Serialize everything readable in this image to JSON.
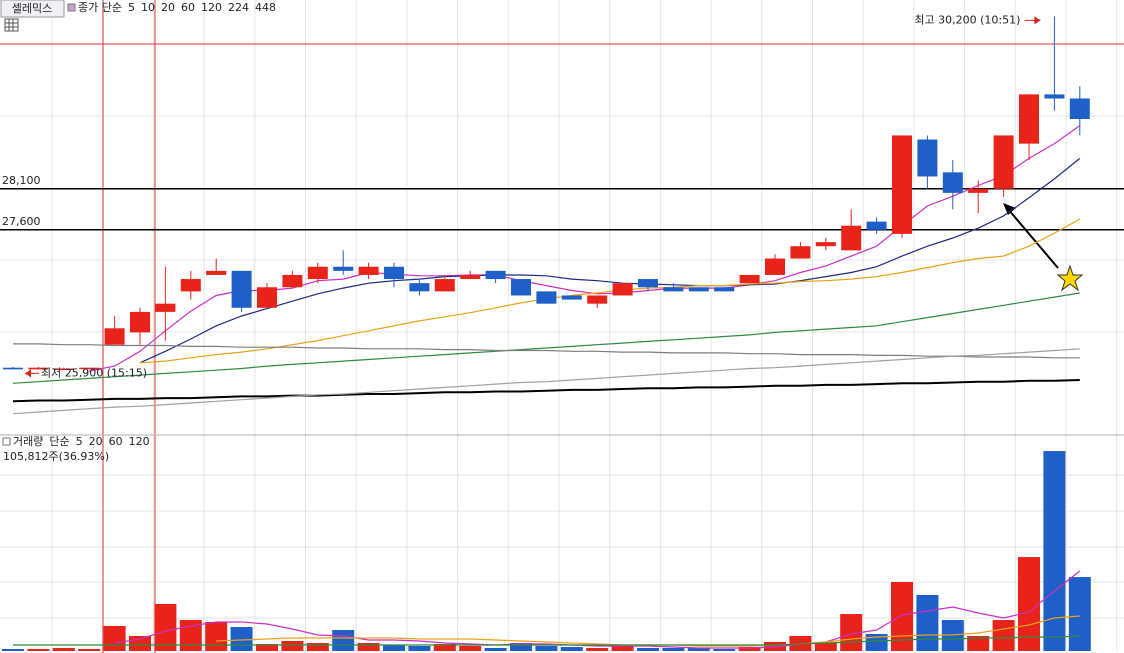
{
  "chart_data": [
    {
      "type": "candlestick",
      "title": "셀레믹스",
      "legend_title": "종가 단순",
      "up_color": "#e8231a",
      "down_color": "#1f5fc8",
      "open": [
        25920,
        25900,
        25910,
        25910,
        26200,
        26350,
        26600,
        26850,
        27050,
        27100,
        26650,
        26900,
        27000,
        27150,
        27050,
        27150,
        26950,
        26850,
        27000,
        27100,
        27000,
        26850,
        26800,
        26700,
        26800,
        27000,
        26900,
        26900,
        26900,
        26950,
        27050,
        27250,
        27400,
        27350,
        27700,
        27550,
        28700,
        28300,
        28050,
        28100,
        28650,
        29250,
        29200
      ],
      "high": [
        25930,
        25930,
        25920,
        25920,
        26550,
        26650,
        27150,
        27100,
        27250,
        27100,
        26950,
        27100,
        27200,
        27350,
        27200,
        27200,
        27000,
        27050,
        27100,
        27100,
        27000,
        26850,
        26800,
        26800,
        26950,
        27000,
        26950,
        26900,
        26900,
        27050,
        27300,
        27450,
        27500,
        27850,
        27750,
        28750,
        28750,
        28450,
        28200,
        28750,
        29250,
        30200,
        29350
      ],
      "low": [
        25900,
        25900,
        25900,
        25900,
        26200,
        26200,
        26250,
        26750,
        27050,
        26600,
        26650,
        26900,
        26950,
        27050,
        27000,
        26900,
        26800,
        26850,
        27000,
        26950,
        26800,
        26700,
        26750,
        26650,
        26800,
        26850,
        26850,
        26850,
        26850,
        26950,
        27050,
        27250,
        27350,
        27350,
        27550,
        27500,
        28100,
        27850,
        27800,
        28000,
        28450,
        29050,
        28750
      ],
      "close": [
        25900,
        25920,
        25910,
        25920,
        26400,
        26600,
        26700,
        27000,
        27100,
        26650,
        26900,
        27050,
        27150,
        27100,
        27150,
        27000,
        26850,
        27000,
        27050,
        27000,
        26800,
        26700,
        26750,
        26800,
        26950,
        26900,
        26850,
        26850,
        26850,
        27050,
        27250,
        27400,
        27450,
        27650,
        27600,
        28750,
        28250,
        28050,
        28100,
        28750,
        29250,
        29200,
        28950
      ],
      "series": [
        {
          "name": "5",
          "color": "#cc2fc4",
          "values": [
            null,
            null,
            null,
            25880,
            25940,
            26120,
            26370,
            26610,
            26800,
            26860,
            26860,
            26890,
            26980,
            27000,
            27080,
            27060,
            27040,
            27040,
            27050,
            27050,
            26980,
            26920,
            26860,
            26820,
            26830,
            26860,
            26890,
            26890,
            26890,
            26930,
            26980,
            27080,
            27160,
            27280,
            27400,
            27650,
            27890,
            28010,
            28140,
            28260,
            28470,
            28650,
            28870
          ]
        },
        {
          "name": "10",
          "color": "#1a2a80",
          "values": [
            null,
            null,
            null,
            null,
            null,
            25980,
            26120,
            26270,
            26430,
            26550,
            26640,
            26730,
            26820,
            26890,
            26950,
            26980,
            27000,
            27030,
            27040,
            27050,
            27050,
            27040,
            27000,
            26980,
            26950,
            26940,
            26930,
            26920,
            26920,
            26930,
            26940,
            26980,
            27030,
            27080,
            27150,
            27280,
            27400,
            27500,
            27620,
            27770,
            27990,
            28220,
            28470
          ]
        },
        {
          "name": "20",
          "color": "#e8a317",
          "values": [
            null,
            null,
            null,
            null,
            null,
            25980,
            26000,
            26040,
            26080,
            26110,
            26150,
            26200,
            26250,
            26310,
            26370,
            26430,
            26490,
            26540,
            26590,
            26650,
            26710,
            26760,
            26800,
            26830,
            26870,
            26890,
            26900,
            26920,
            26920,
            26940,
            26950,
            26970,
            26980,
            27000,
            27030,
            27080,
            27140,
            27200,
            27250,
            27280,
            27400,
            27560,
            27730
          ]
        },
        {
          "name": "60",
          "color": "#2e8b3e",
          "values": [
            25730,
            25750,
            25770,
            25790,
            25810,
            25830,
            25850,
            25870,
            25890,
            25910,
            25940,
            25960,
            25980,
            26000,
            26020,
            26040,
            26060,
            26080,
            26100,
            26120,
            26140,
            26160,
            26180,
            26200,
            26220,
            26240,
            26260,
            26280,
            26300,
            26320,
            26350,
            26370,
            26390,
            26410,
            26430,
            26480,
            26530,
            26580,
            26630,
            26680,
            26730,
            26780,
            26830
          ]
        },
        {
          "name": "120",
          "color": "#7f7f7f",
          "values": [
            26210,
            26210,
            26200,
            26200,
            26190,
            26190,
            26190,
            26180,
            26180,
            26170,
            26170,
            26170,
            26160,
            26160,
            26150,
            26150,
            26150,
            26140,
            26140,
            26130,
            26130,
            26130,
            26120,
            26120,
            26110,
            26110,
            26100,
            26100,
            26100,
            26090,
            26090,
            26080,
            26080,
            26080,
            26070,
            26070,
            26060,
            26060,
            26050,
            26050,
            26050,
            26040,
            26040
          ]
        },
        {
          "name": "224",
          "color": "#000000",
          "values": [
            25510,
            25520,
            25520,
            25530,
            25540,
            25540,
            25550,
            25550,
            25560,
            25570,
            25570,
            25580,
            25580,
            25590,
            25600,
            25600,
            25610,
            25620,
            25620,
            25630,
            25630,
            25640,
            25650,
            25650,
            25660,
            25670,
            25670,
            25680,
            25680,
            25690,
            25700,
            25700,
            25710,
            25710,
            25720,
            25730,
            25730,
            25740,
            25750,
            25750,
            25760,
            25760,
            25770
          ]
        },
        {
          "name": "448",
          "color": "#a0a0a0",
          "values": [
            25360,
            25380,
            25400,
            25420,
            25440,
            25450,
            25470,
            25490,
            25510,
            25530,
            25550,
            25570,
            25590,
            25600,
            25620,
            25640,
            25660,
            25680,
            25700,
            25720,
            25740,
            25750,
            25770,
            25790,
            25810,
            25830,
            25850,
            25870,
            25890,
            25910,
            25920,
            25940,
            25960,
            25980,
            26000,
            26020,
            26040,
            26060,
            26070,
            26090,
            26110,
            26130,
            26150
          ]
        }
      ],
      "hlines": [
        {
          "value": 28100,
          "label": "28,100"
        },
        {
          "value": 27600,
          "label": "27,600"
        }
      ],
      "high_label": "최고 30,200 (10:51)",
      "low_label": "최저 25,900 (15:15)",
      "ylim": [
        25100,
        30400
      ]
    },
    {
      "type": "volume",
      "title": "거래량",
      "legend_title": "단순",
      "subtitle": "105,812주(36.93%)",
      "values": [
        2900,
        2900,
        4300,
        2900,
        35800,
        21500,
        67200,
        44300,
        41500,
        34300,
        10000,
        14300,
        11400,
        30000,
        11400,
        8600,
        7200,
        10000,
        7200,
        4300,
        11400,
        7200,
        5700,
        4300,
        7200,
        4300,
        4300,
        4300,
        2900,
        5700,
        12900,
        21500,
        11400,
        52900,
        24300,
        98700,
        80100,
        44300,
        21500,
        44300,
        134400,
        286000,
        105812
      ],
      "series": [
        {
          "name": "5",
          "color": "#cc2fc4",
          "values": [
            null,
            null,
            null,
            null,
            11400,
            17200,
            28600,
            35800,
            41500,
            41500,
            38600,
            31500,
            22900,
            21500,
            15700,
            15700,
            14300,
            11400,
            10000,
            8600,
            10000,
            10000,
            8600,
            7200,
            7200,
            7200,
            5700,
            4300,
            4300,
            4300,
            5700,
            10000,
            12900,
            24300,
            30000,
            51500,
            57200,
            62900,
            54300,
            47200,
            55800,
            85800,
            114400
          ]
        },
        {
          "name": "20",
          "color": "#e8a317",
          "values": [
            null,
            null,
            null,
            null,
            null,
            null,
            null,
            null,
            14300,
            15700,
            17200,
            18600,
            18600,
            18600,
            18600,
            18600,
            17200,
            17200,
            17200,
            15700,
            14300,
            12900,
            11400,
            10000,
            8600,
            8600,
            8600,
            7200,
            7200,
            7200,
            8600,
            10000,
            12900,
            17200,
            20000,
            21500,
            22900,
            22900,
            25700,
            31500,
            37200,
            47200,
            50100
          ]
        },
        {
          "name": "60",
          "color": "#2e8b3e",
          "values": [
            8600,
            8600,
            8600,
            8600,
            8600,
            8600,
            8600,
            8600,
            8600,
            8600,
            8600,
            8600,
            8600,
            8600,
            8600,
            8600,
            8600,
            8600,
            8600,
            8600,
            8600,
            8600,
            8600,
            8600,
            8600,
            8600,
            8600,
            8600,
            8600,
            8600,
            8600,
            10000,
            11400,
            12900,
            14300,
            15700,
            17200,
            17200,
            18600,
            18600,
            20000,
            20000,
            21500
          ]
        },
        {
          "name": "120",
          "color": "#7f7f7f",
          "values": [
            null,
            null,
            null,
            null,
            null,
            null,
            null,
            null,
            null,
            null,
            null,
            null,
            null,
            null,
            null,
            null,
            null,
            null,
            null,
            null,
            null,
            null,
            null,
            null,
            null,
            null,
            null,
            null,
            null,
            null,
            null,
            null,
            null,
            null,
            null,
            null,
            null,
            null,
            null,
            null,
            null,
            null,
            null
          ]
        }
      ],
      "ylim": [
        0,
        309000
      ]
    }
  ]
}
